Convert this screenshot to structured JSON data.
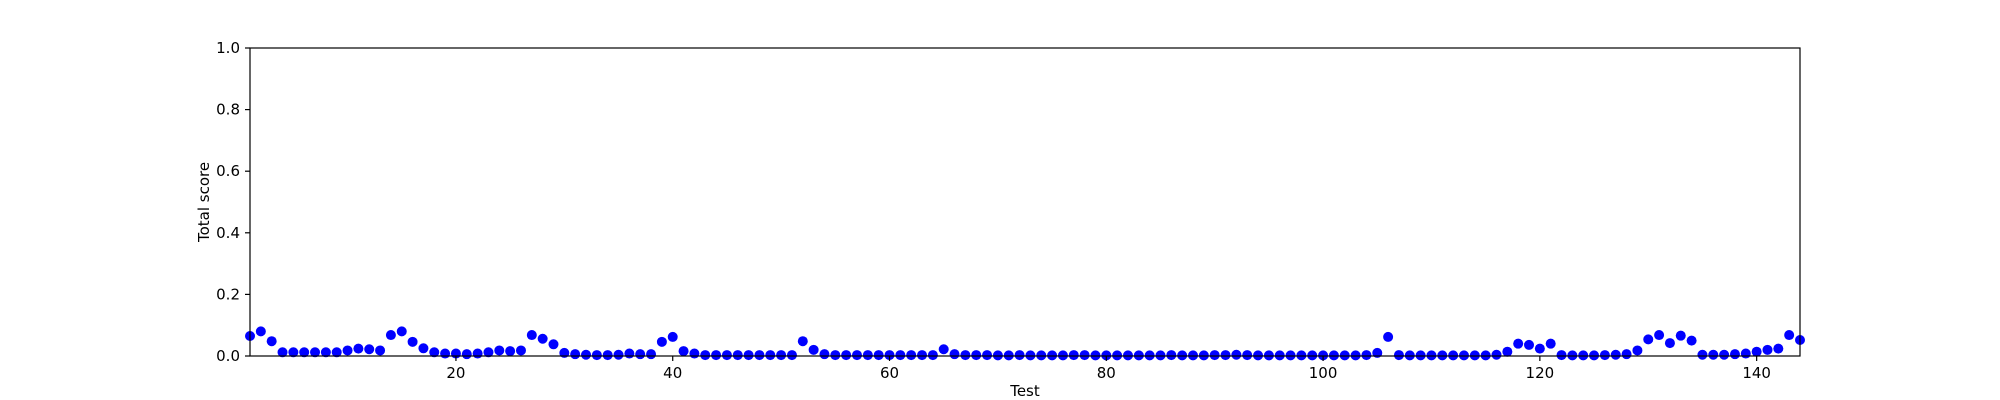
{
  "chart_data": {
    "type": "scatter",
    "title": "",
    "xlabel": "Test",
    "ylabel": "Total score",
    "xlim": [
      1,
      144
    ],
    "ylim": [
      0,
      1.0
    ],
    "xticks": [
      20,
      40,
      60,
      80,
      100,
      120,
      140
    ],
    "xtick_labels": [
      "20",
      "40",
      "60",
      "80",
      "100",
      "120",
      "140"
    ],
    "yticks": [
      0.0,
      0.2,
      0.4,
      0.6,
      0.8,
      1.0
    ],
    "ytick_labels": [
      "0.0",
      "0.2",
      "0.4",
      "0.6",
      "0.8",
      "1.0"
    ],
    "grid": false,
    "marker_color": "#0000ff",
    "x": [
      1,
      2,
      3,
      4,
      5,
      6,
      7,
      8,
      9,
      10,
      11,
      12,
      13,
      14,
      15,
      16,
      17,
      18,
      19,
      20,
      21,
      22,
      23,
      24,
      25,
      26,
      27,
      28,
      29,
      30,
      31,
      32,
      33,
      34,
      35,
      36,
      37,
      38,
      39,
      40,
      41,
      42,
      43,
      44,
      45,
      46,
      47,
      48,
      49,
      50,
      51,
      52,
      53,
      54,
      55,
      56,
      57,
      58,
      59,
      60,
      61,
      62,
      63,
      64,
      65,
      66,
      67,
      68,
      69,
      70,
      71,
      72,
      73,
      74,
      75,
      76,
      77,
      78,
      79,
      80,
      81,
      82,
      83,
      84,
      85,
      86,
      87,
      88,
      89,
      90,
      91,
      92,
      93,
      94,
      95,
      96,
      97,
      98,
      99,
      100,
      101,
      102,
      103,
      104,
      105,
      106,
      107,
      108,
      109,
      110,
      111,
      112,
      113,
      114,
      115,
      116,
      117,
      118,
      119,
      120,
      121,
      122,
      123,
      124,
      125,
      126,
      127,
      128,
      129,
      130,
      131,
      132,
      133,
      134,
      135,
      136,
      137,
      138,
      139,
      140,
      141,
      142,
      143,
      144
    ],
    "y": [
      0.065,
      0.08,
      0.048,
      0.012,
      0.012,
      0.012,
      0.012,
      0.012,
      0.012,
      0.018,
      0.024,
      0.022,
      0.018,
      0.068,
      0.08,
      0.046,
      0.025,
      0.012,
      0.008,
      0.008,
      0.006,
      0.008,
      0.012,
      0.018,
      0.016,
      0.018,
      0.068,
      0.056,
      0.038,
      0.01,
      0.006,
      0.004,
      0.003,
      0.003,
      0.004,
      0.008,
      0.006,
      0.006,
      0.046,
      0.062,
      0.016,
      0.008,
      0.003,
      0.003,
      0.003,
      0.003,
      0.003,
      0.003,
      0.003,
      0.003,
      0.003,
      0.048,
      0.02,
      0.006,
      0.003,
      0.003,
      0.003,
      0.003,
      0.003,
      0.003,
      0.003,
      0.003,
      0.003,
      0.003,
      0.022,
      0.006,
      0.003,
      0.003,
      0.003,
      0.002,
      0.002,
      0.003,
      0.002,
      0.002,
      0.002,
      0.002,
      0.003,
      0.003,
      0.002,
      0.002,
      0.002,
      0.002,
      0.002,
      0.002,
      0.002,
      0.003,
      0.002,
      0.002,
      0.002,
      0.003,
      0.003,
      0.004,
      0.003,
      0.002,
      0.002,
      0.002,
      0.002,
      0.002,
      0.002,
      0.002,
      0.002,
      0.002,
      0.002,
      0.003,
      0.01,
      0.062,
      0.003,
      0.002,
      0.002,
      0.002,
      0.002,
      0.002,
      0.002,
      0.002,
      0.002,
      0.004,
      0.014,
      0.04,
      0.036,
      0.024,
      0.04,
      0.003,
      0.002,
      0.002,
      0.002,
      0.003,
      0.004,
      0.006,
      0.018,
      0.054,
      0.068,
      0.042,
      0.066,
      0.05,
      0.004,
      0.004,
      0.004,
      0.006,
      0.008,
      0.014,
      0.02,
      0.024,
      0.068,
      0.052
    ]
  }
}
